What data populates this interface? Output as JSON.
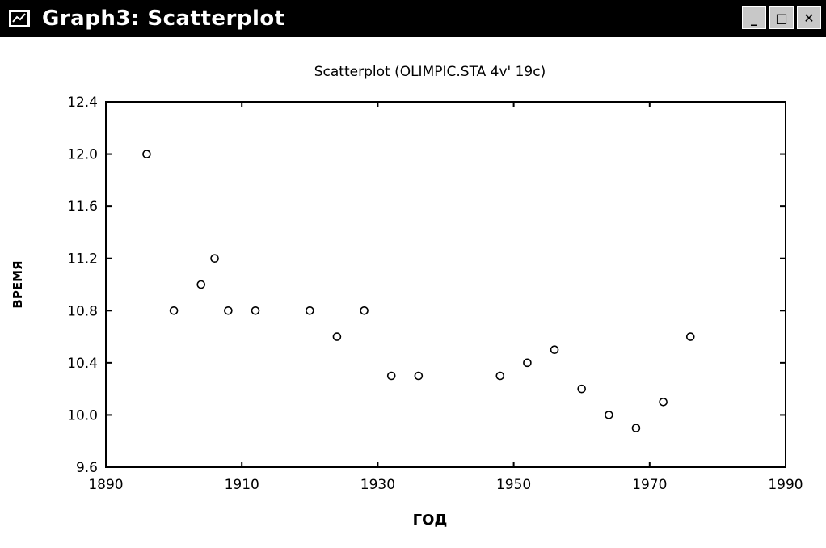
{
  "window": {
    "title": "Graph3: Scatterplot",
    "controls": {
      "minimize": "_",
      "maximize": "□",
      "close": "✕"
    }
  },
  "chart_data": {
    "type": "scatter",
    "title": "Scatterplot (OLIMPIC.STA 4v' 19c)",
    "xlabel": "ГОД",
    "ylabel": "ВРЕМЯ",
    "xlim": [
      1890,
      1990
    ],
    "ylim": [
      9.6,
      12.4
    ],
    "xticks": [
      "1890",
      "1910",
      "1930",
      "1950",
      "1970",
      "1990"
    ],
    "yticks": [
      "9.6",
      "10.0",
      "10.4",
      "10.8",
      "11.2",
      "11.6",
      "12.0",
      "12.4"
    ],
    "grid": false,
    "x": [
      1896,
      1900,
      1904,
      1906,
      1908,
      1912,
      1920,
      1924,
      1928,
      1932,
      1936,
      1948,
      1952,
      1956,
      1960,
      1964,
      1968,
      1972,
      1976
    ],
    "y": [
      12.0,
      10.8,
      11.0,
      11.2,
      10.8,
      10.8,
      10.8,
      10.6,
      10.8,
      10.3,
      10.3,
      10.3,
      10.4,
      10.5,
      10.2,
      10.0,
      9.9,
      10.1,
      10.6
    ]
  }
}
